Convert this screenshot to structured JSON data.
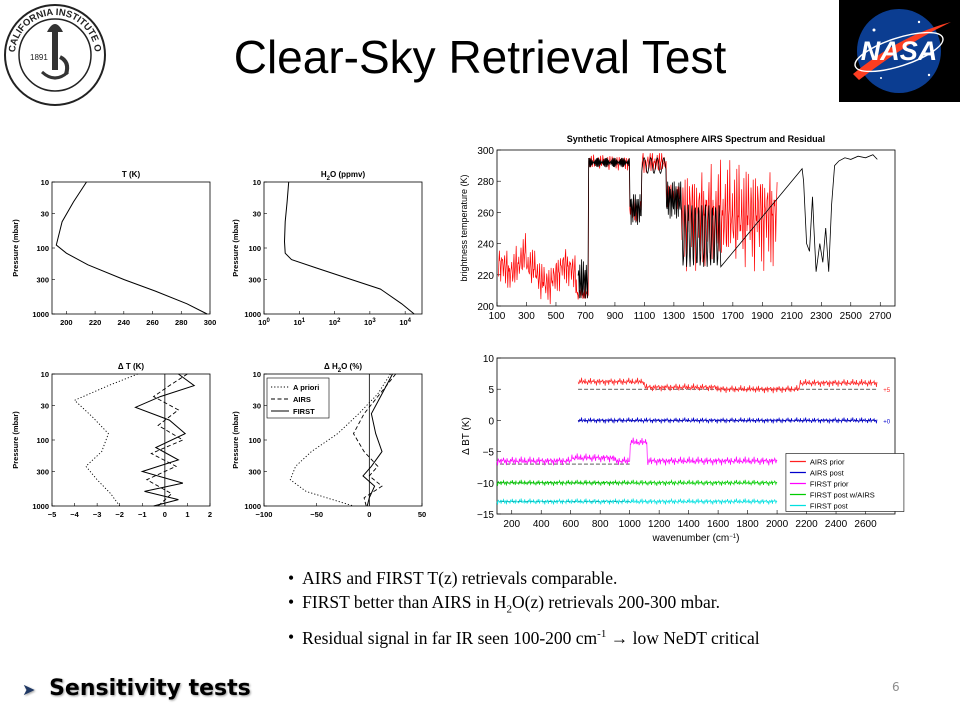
{
  "slide": {
    "title": "Clear-Sky Retrieval Test",
    "page_number": "6",
    "footer_heading": "Sensitivity tests"
  },
  "logos": {
    "left": "CALIFORNIA INSTITUTE OF TECHNOLOGY",
    "left_year": "1891",
    "right": "NASA"
  },
  "bullets": [
    {
      "parts": [
        "AIRS and FIRST T(z) retrievals comparable."
      ]
    },
    {
      "pre": "FIRST better than AIRS in H",
      "sub": "2",
      "post": "O(z) retrievals 200-300 mbar."
    },
    {
      "pre": "Residual signal in far IR seen 100-200 cm",
      "sup": "-1",
      "post": " → low NeDT critical"
    }
  ],
  "chart_data": [
    {
      "type": "line",
      "panel": "T",
      "title": "T (K)",
      "ylabel": "Pressure (mbar)",
      "xlim": [
        190,
        300
      ],
      "ylim": [
        10,
        1000
      ],
      "y_log": true,
      "xticks": [
        "200",
        "220",
        "240",
        "260",
        "280",
        "300"
      ],
      "yticks": [
        "10",
        "30",
        "100",
        "300",
        "1000"
      ],
      "series": [
        {
          "x": [
            214,
            205,
            197,
            193,
            200,
            215,
            240,
            262,
            284,
            298
          ],
          "y": [
            10,
            20,
            40,
            90,
            120,
            180,
            300,
            450,
            700,
            1000
          ]
        }
      ]
    },
    {
      "type": "line",
      "panel": "H2O",
      "title_pre": "H",
      "title_sub": "2",
      "title_post": "O (ppmv)",
      "ylabel": "Pressure (mbar)",
      "xlim": [
        1,
        30000
      ],
      "x_log": true,
      "ylim": [
        10,
        1000
      ],
      "y_log": true,
      "xticks": [
        "10^0",
        "10^1",
        "10^2",
        "10^3",
        "10^4"
      ],
      "yticks": [
        "10",
        "30",
        "100",
        "300",
        "1000"
      ],
      "series": [
        {
          "x": [
            5,
            4.5,
            4,
            3.8,
            4,
            6,
            30,
            200,
            2000,
            8000,
            18000
          ],
          "y": [
            10,
            20,
            40,
            80,
            120,
            150,
            200,
            280,
            420,
            700,
            1000
          ]
        }
      ]
    },
    {
      "type": "line",
      "panel": "dT",
      "title": "Δ T (K)",
      "ylabel": "Pressure (mbar)",
      "xlim": [
        -5,
        2
      ],
      "ylim": [
        10,
        1000
      ],
      "y_log": true,
      "xticks": [
        "−5",
        "−4",
        "−3",
        "−2",
        "−1",
        "0",
        "1",
        "2"
      ],
      "yticks": [
        "10",
        "30",
        "100",
        "300",
        "1000"
      ],
      "series": [
        {
          "name": "A priori",
          "style": "dotted",
          "x": [
            -1.2,
            -2.5,
            -4.0,
            -3.2,
            -2.5,
            -2.8,
            -3.5,
            -3.0,
            -2.4,
            -2.0
          ],
          "y": [
            10,
            15,
            25,
            45,
            80,
            150,
            250,
            400,
            650,
            1000
          ]
        },
        {
          "name": "AIRS",
          "style": "dashed",
          "x": [
            1.0,
            0.2,
            -0.5,
            0.6,
            -0.3,
            0.8,
            -0.6,
            0.5,
            -0.8,
            0.3,
            -0.3
          ],
          "y": [
            10,
            15,
            22,
            35,
            60,
            100,
            160,
            250,
            400,
            650,
            1000
          ]
        },
        {
          "name": "FIRST",
          "style": "solid",
          "x": [
            0.6,
            1.3,
            -0.2,
            -1.3,
            0.2,
            0.9,
            -0.4,
            0.6,
            -1.0,
            0.8,
            -0.9,
            0.6,
            -0.5
          ],
          "y": [
            10,
            15,
            22,
            32,
            50,
            80,
            130,
            200,
            300,
            450,
            600,
            800,
            1000
          ]
        }
      ]
    },
    {
      "type": "line",
      "panel": "dH2O",
      "title_pre": "Δ H",
      "title_sub": "2",
      "title_post": "O (%)",
      "ylabel": "Pressure (mbar)",
      "xlim": [
        -100,
        50
      ],
      "ylim": [
        10,
        1000
      ],
      "y_log": true,
      "xticks": [
        "−100",
        "−50",
        "0",
        "50"
      ],
      "yticks": [
        "10",
        "30",
        "100",
        "300",
        "1000"
      ],
      "legend": [
        "A priori",
        "AIRS",
        "FIRST"
      ],
      "series": [
        {
          "name": "A priori",
          "style": "dotted",
          "x": [
            20,
            8,
            -10,
            -30,
            -55,
            -70,
            -75,
            -60,
            -35,
            -15
          ],
          "y": [
            10,
            20,
            40,
            80,
            150,
            250,
            400,
            600,
            800,
            1000
          ]
        },
        {
          "name": "AIRS",
          "style": "dashed",
          "x": [
            25,
            10,
            -5,
            -15,
            -5,
            8,
            0,
            12,
            -5,
            -3
          ],
          "y": [
            10,
            20,
            40,
            80,
            150,
            250,
            350,
            500,
            750,
            1000
          ]
        },
        {
          "name": "FIRST",
          "style": "solid",
          "x": [
            22,
            12,
            2,
            6,
            12,
            2,
            -6,
            5,
            0,
            -2
          ],
          "y": [
            10,
            20,
            40,
            80,
            150,
            250,
            350,
            500,
            750,
            1000
          ]
        }
      ]
    },
    {
      "type": "line",
      "panel": "spectrum",
      "title": "Synthetic Tropical Atmosphere AIRS Spectrum and Residual",
      "ylabel": "brightness temperature (K)",
      "xlim": [
        100,
        2800
      ],
      "ylim": [
        200,
        300
      ],
      "xticks": [
        "100",
        "300",
        "500",
        "700",
        "900",
        "1100",
        "1300",
        "1500",
        "1700",
        "1900",
        "2100",
        "2300",
        "2500",
        "2700"
      ],
      "yticks": [
        "200",
        "220",
        "240",
        "260",
        "280",
        "300"
      ],
      "series": [
        {
          "name": "red",
          "color": "#ff0000"
        },
        {
          "name": "black",
          "color": "#000000"
        }
      ]
    },
    {
      "type": "line",
      "panel": "residual",
      "ylabel": "Δ BT (K)",
      "xlabel_pre": "wavenumber (cm",
      "xlabel_sup": "−1",
      "xlabel_post": ")",
      "xlim": [
        100,
        2800
      ],
      "ylim": [
        -15,
        10
      ],
      "xticks": [
        "200",
        "400",
        "600",
        "800",
        "1000",
        "1200",
        "1400",
        "1600",
        "1800",
        "2000",
        "2200",
        "2400",
        "2600"
      ],
      "yticks": [
        "−15",
        "−10",
        "−5",
        "0",
        "5",
        "10"
      ],
      "offsets": [
        "+5",
        "+0",
        "−7",
        "−10",
        "−13"
      ],
      "legend": [
        "AIRS prior",
        "AIRS post",
        "FIRST prior",
        "FIRST post w/AIRS",
        "FIRST post"
      ],
      "series": [
        {
          "name": "AIRS prior",
          "color": "#ff2020",
          "offset": 5
        },
        {
          "name": "AIRS post",
          "color": "#0000cc",
          "offset": 0
        },
        {
          "name": "FIRST prior",
          "color": "#ff00ff",
          "offset": -7
        },
        {
          "name": "FIRST post w/AIRS",
          "color": "#00cc00",
          "offset": -10
        },
        {
          "name": "FIRST post",
          "color": "#00e0e0",
          "offset": -13
        }
      ]
    }
  ]
}
